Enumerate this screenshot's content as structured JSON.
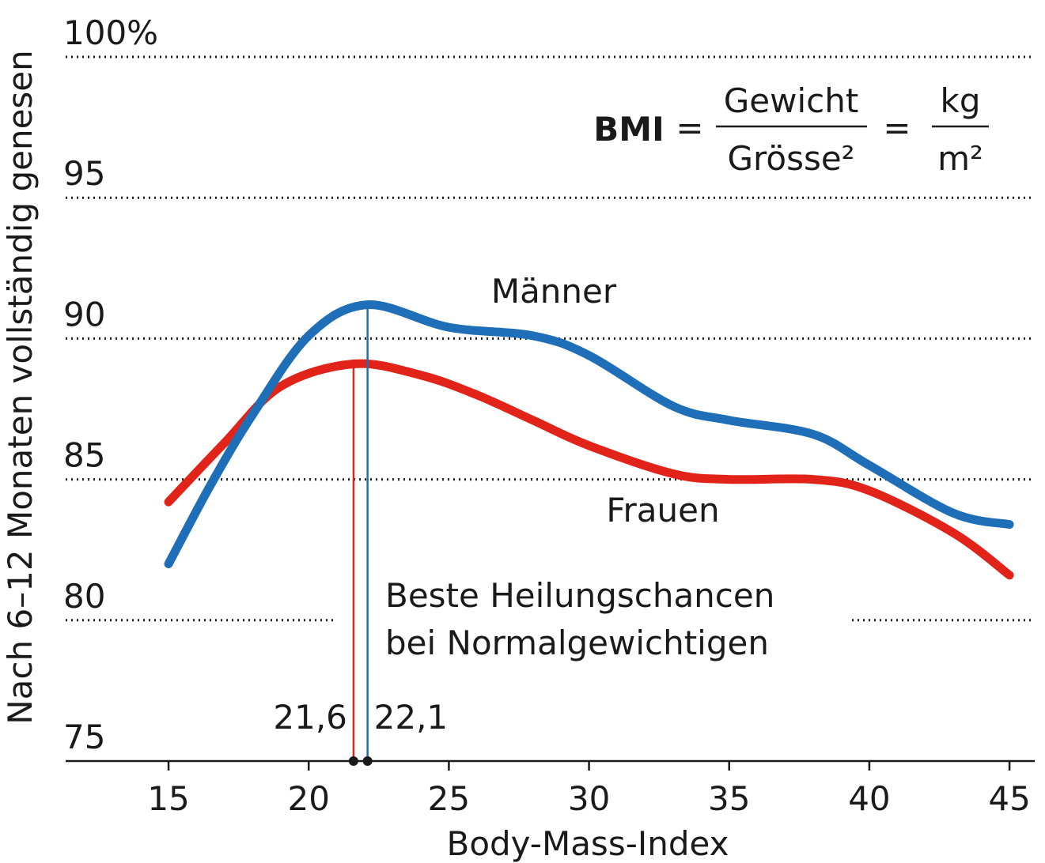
{
  "chart_data": {
    "type": "line",
    "ylabel": "Nach 6–12 Monaten vollständig genesen",
    "xlabel": "Body-Mass-Index",
    "xlim": [
      11.33,
      45.9
    ],
    "ylim": [
      75,
      100
    ],
    "xticks": [
      15,
      20,
      25,
      30,
      35,
      40,
      45
    ],
    "yticks": [
      75,
      80,
      85,
      90,
      95,
      {
        "value": 100,
        "label": "100%"
      }
    ],
    "grid": true,
    "series": [
      {
        "name": "Männer",
        "color": "#1f6fb8",
        "x": [
          15,
          16.5,
          18,
          20,
          22.1,
          25,
          28,
          30,
          33,
          35,
          38,
          40,
          43,
          45
        ],
        "values": [
          82.0,
          84.8,
          87.3,
          90.1,
          91.2,
          90.4,
          90.1,
          89.4,
          87.6,
          87.1,
          86.6,
          85.5,
          83.8,
          83.4
        ],
        "peak": {
          "x": 22.1,
          "label": "22,1",
          "y": 91.2
        }
      },
      {
        "name": "Frauen",
        "color": "#e2231a",
        "x": [
          15,
          17,
          19,
          21.6,
          24,
          26,
          28,
          30,
          33,
          35,
          38,
          40,
          43,
          45
        ],
        "values": [
          84.2,
          86.3,
          88.3,
          89.1,
          88.7,
          88.0,
          87.1,
          86.2,
          85.2,
          85.0,
          85.0,
          84.6,
          83.1,
          81.6
        ],
        "peak": {
          "x": 21.6,
          "label": "21,6",
          "y": 89.1
        }
      }
    ],
    "annotation": [
      "Beste Heilungschancen",
      "bei Normalgewichtigen"
    ],
    "formula": {
      "lhs": "BMI",
      "eq": "=",
      "num1": "Gewicht",
      "den1": "Grösse²",
      "num2": "kg",
      "den2": "m²"
    }
  }
}
